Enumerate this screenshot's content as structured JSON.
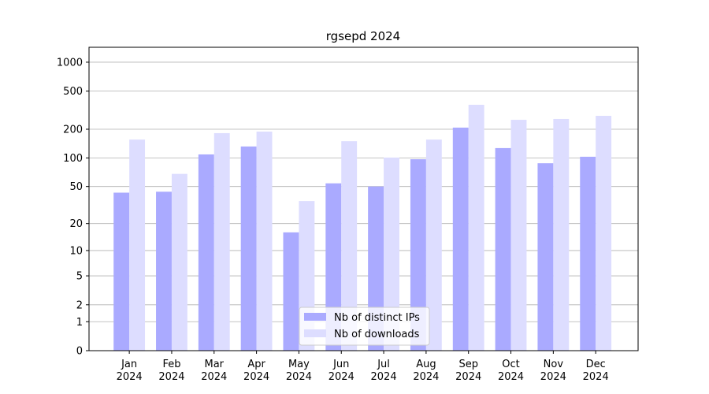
{
  "chart_data": {
    "type": "bar",
    "title": "rgsepd 2024",
    "categories": [
      "Jan\n2024",
      "Feb\n2024",
      "Mar\n2024",
      "Apr\n2024",
      "May\n2024",
      "Jun\n2024",
      "Jul\n2024",
      "Aug\n2024",
      "Sep\n2024",
      "Oct\n2024",
      "Nov\n2024",
      "Dec\n2024"
    ],
    "series": [
      {
        "name": "Nb of distinct IPs",
        "color": "#aaaaff",
        "values": [
          43,
          44,
          109,
          132,
          16,
          54,
          50,
          97,
          208,
          127,
          88,
          103
        ]
      },
      {
        "name": "Nb of downloads",
        "color": "#ddddff",
        "values": [
          156,
          68,
          182,
          189,
          35,
          150,
          101,
          156,
          360,
          251,
          256,
          276
        ]
      }
    ],
    "yscale": "log1p",
    "ylim": [
      0,
      1430
    ],
    "yticks": [
      0,
      1,
      2,
      5,
      10,
      20,
      50,
      100,
      200,
      500,
      1000
    ],
    "grid": true,
    "legend": "lower center"
  }
}
